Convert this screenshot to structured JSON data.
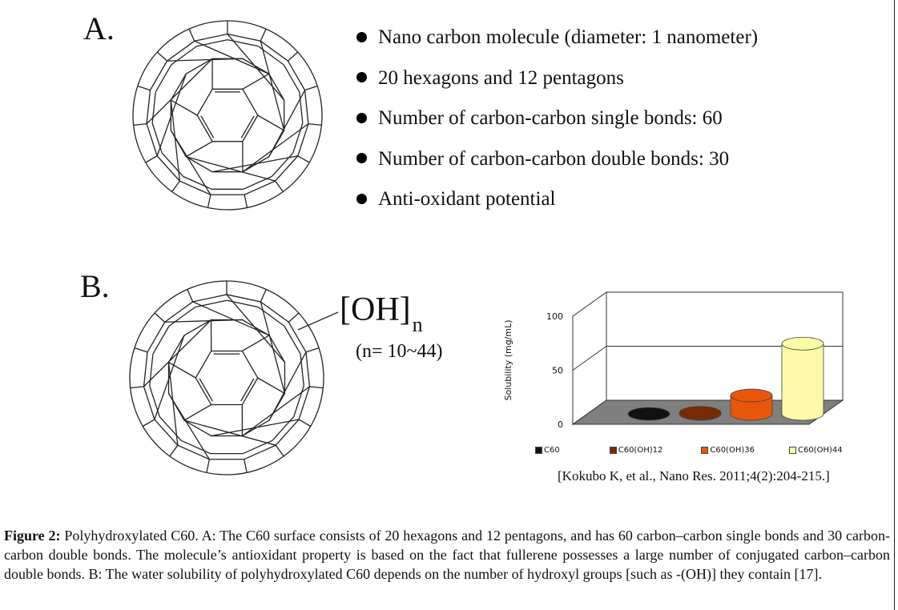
{
  "panel_a": {
    "label": "A.",
    "bullets": [
      "Nano carbon molecule (diameter:  1 nanometer)",
      "20 hexagons  and 12 pentagons",
      "Number  of carbon-carbon single bonds:  60",
      "Number  of carbon-carbon double bonds:  30",
      "Anti-oxidant  potential"
    ]
  },
  "panel_b": {
    "label": "B.",
    "oh_group": "[OH]",
    "oh_subscript": "n",
    "n_range": "(n= 10~44)",
    "citation": "[Kokubo K, et al.,  Nano Res. 2011;4(2):204-215.]"
  },
  "chart_data": {
    "type": "bar",
    "style": "3d-cylinder",
    "title": "",
    "xlabel": "",
    "ylabel": "Solubility (mg/mL)",
    "ylim": [
      0,
      100
    ],
    "yticks": [
      0,
      50,
      100
    ],
    "gridlines": [
      50
    ],
    "categories": [
      "C60",
      "C60(OH)12",
      "C60(OH)36",
      "C60(OH)44"
    ],
    "values": [
      0,
      1,
      17,
      65
    ],
    "colors": [
      "#111111",
      "#7a2a00",
      "#e8560a",
      "#fbfaa6"
    ],
    "legend": {
      "position": "bottom",
      "entries": [
        "C60",
        "C60(OH)12",
        "C60(OH)36",
        "C60(OH)44"
      ]
    },
    "floor_color": "#7f7f7f"
  },
  "caption": {
    "lead": "Figure 2:",
    "text": " Polyhydroxylated C60. A: The C60 surface consists of 20 hexagons and 12 pentagons, and has 60 carbon–carbon single bonds and 30 carbon-carbon double bonds. The molecule’s antioxidant property is based on the fact that fullerene possesses a large number of conjugated carbon–carbon double bonds. B: The water solubility of polyhydroxylated C60 depends on the number of hydroxyl groups [such as -(OH)] they contain [17]."
  }
}
